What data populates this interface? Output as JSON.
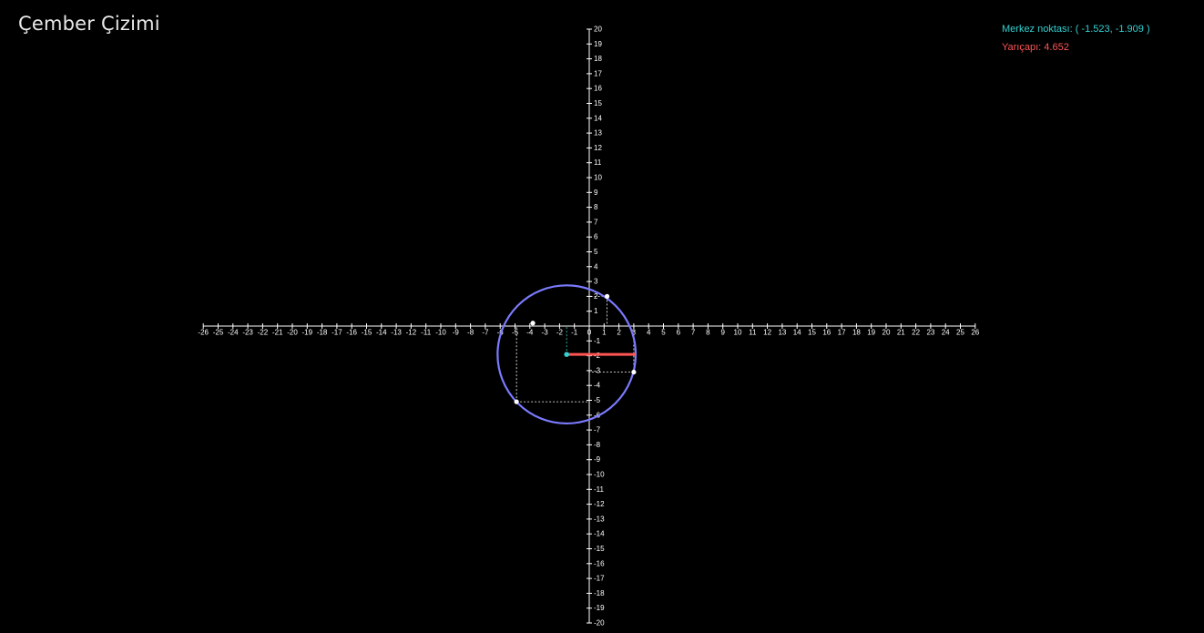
{
  "header": {
    "title": "Çember Çizimi"
  },
  "info": {
    "center_label": "Merkez noktası:",
    "center_value": "( -1.523, -1.909 )",
    "radius_label": "Yarıçapı:",
    "radius_value": "4.652"
  },
  "colors": {
    "background": "#000000",
    "axis": "#ffffff",
    "circle": "#7b7bff",
    "center": "#33d1d1",
    "radius": "#ff5555",
    "guides": "#ffffff"
  },
  "chart_data": {
    "type": "scatter",
    "title": "",
    "xlim": [
      -26,
      26
    ],
    "ylim": [
      -20,
      20
    ],
    "x_ticks": [
      -26,
      -25,
      -24,
      -23,
      -22,
      -21,
      -20,
      -19,
      -18,
      -17,
      -16,
      -15,
      -14,
      -13,
      -12,
      -11,
      -10,
      -9,
      -8,
      -7,
      -6,
      -5,
      -4,
      -3,
      -2,
      -1,
      0,
      1,
      2,
      3,
      4,
      5,
      6,
      7,
      8,
      9,
      10,
      11,
      12,
      13,
      14,
      15,
      16,
      17,
      18,
      19,
      20,
      21,
      22,
      23,
      24,
      25,
      26
    ],
    "y_ticks": [
      -20,
      -19,
      -18,
      -17,
      -16,
      -15,
      -14,
      -13,
      -12,
      -11,
      -10,
      -9,
      -8,
      -7,
      -6,
      -5,
      -4,
      -3,
      -2,
      -1,
      1,
      2,
      3,
      4,
      5,
      6,
      7,
      8,
      9,
      10,
      11,
      12,
      13,
      14,
      15,
      16,
      17,
      18,
      19,
      20
    ],
    "circle": {
      "center": [
        -1.523,
        -1.909
      ],
      "radius": 4.652
    },
    "points": [
      {
        "x": 1.2,
        "y": 2.0
      },
      {
        "x": 3.0,
        "y": -3.1
      },
      {
        "x": -4.9,
        "y": -5.1
      },
      {
        "x": -3.8,
        "y": 0.2
      }
    ]
  }
}
